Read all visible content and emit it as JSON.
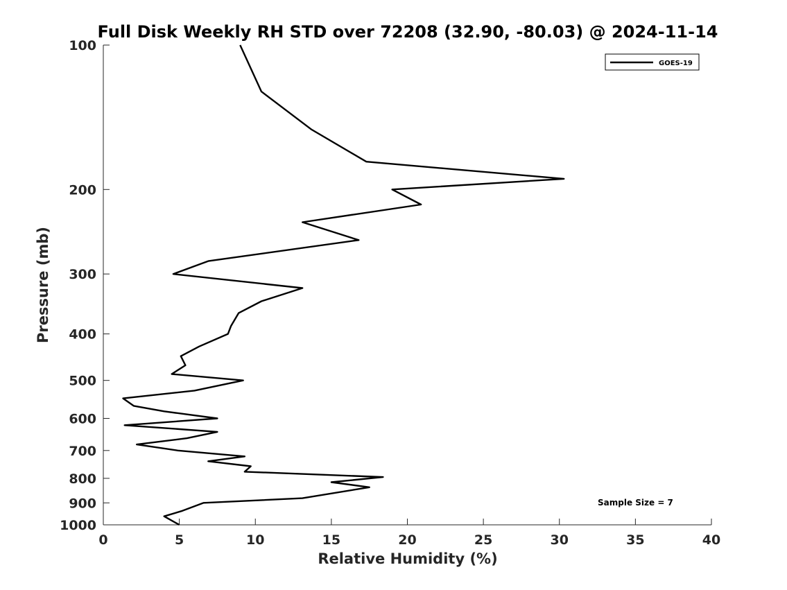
{
  "chart_data": {
    "type": "line",
    "title": "Full Disk Weekly RH STD over 72208 (32.90, -80.03) @ 2024-11-14",
    "xlabel": "Relative Humidity (%)",
    "ylabel": "Pressure (mb)",
    "xlim": [
      0,
      40
    ],
    "ylim": [
      100,
      1000
    ],
    "yscale": "log",
    "y_inverted": true,
    "grid": false,
    "legend_position": "top-right",
    "x_ticks": [
      "0",
      "5",
      "10",
      "15",
      "20",
      "25",
      "30",
      "35",
      "40"
    ],
    "y_ticks": [
      "100",
      "200",
      "300",
      "400",
      "500",
      "600",
      "700",
      "800",
      "900",
      "1000"
    ],
    "annotation": "Sample Size = 7",
    "series": [
      {
        "name": "GOES-19",
        "color": "#000000",
        "points": [
          [
            9.0,
            100
          ],
          [
            10.4,
            125
          ],
          [
            13.7,
            150
          ],
          [
            17.3,
            175
          ],
          [
            30.3,
            190
          ],
          [
            19.0,
            200
          ],
          [
            20.9,
            215
          ],
          [
            13.1,
            234
          ],
          [
            16.8,
            255
          ],
          [
            6.9,
            282
          ],
          [
            4.6,
            300
          ],
          [
            13.1,
            321
          ],
          [
            10.4,
            342
          ],
          [
            8.9,
            362
          ],
          [
            8.4,
            385
          ],
          [
            8.2,
            400
          ],
          [
            6.3,
            425
          ],
          [
            5.1,
            445
          ],
          [
            5.4,
            465
          ],
          [
            4.5,
            485
          ],
          [
            9.2,
            500
          ],
          [
            6.0,
            525
          ],
          [
            1.3,
            545
          ],
          [
            2.0,
            565
          ],
          [
            4.0,
            580
          ],
          [
            7.5,
            600
          ],
          [
            1.4,
            620
          ],
          [
            7.5,
            640
          ],
          [
            5.5,
            660
          ],
          [
            2.2,
            680
          ],
          [
            4.9,
            700
          ],
          [
            9.3,
            720
          ],
          [
            6.9,
            737
          ],
          [
            9.7,
            755
          ],
          [
            9.3,
            775
          ],
          [
            18.4,
            795
          ],
          [
            15.0,
            815
          ],
          [
            17.5,
            835
          ],
          [
            13.1,
            880
          ],
          [
            6.6,
            900
          ],
          [
            5.2,
            935
          ],
          [
            4.0,
            960
          ],
          [
            5.0,
            1000
          ]
        ]
      }
    ]
  }
}
